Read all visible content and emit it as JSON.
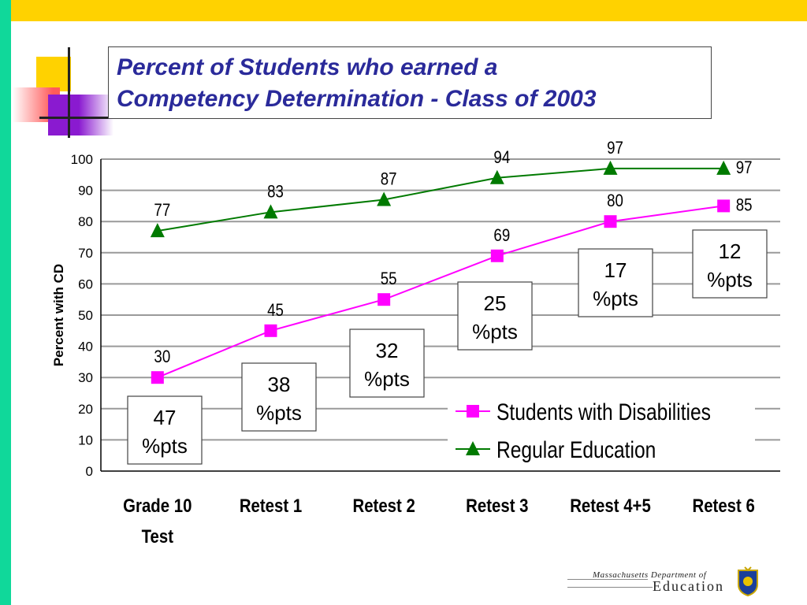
{
  "slide": {
    "title_line1": "Percent of Students who earned a",
    "title_line2": "Competency Determination - Class of 2003",
    "logo_line1": "Massachusetts Department of",
    "logo_line2": "Education"
  },
  "colors": {
    "top_bar": "#ffd200",
    "left_bar": "#10d89a",
    "title": "#2a2a9a",
    "disabilities": "#ff00ff",
    "regular": "#007a00"
  },
  "chart_data": {
    "type": "line",
    "categories": [
      [
        "Grade 10",
        "Test"
      ],
      [
        "Retest 1"
      ],
      [
        "Retest 2"
      ],
      [
        "Retest 3"
      ],
      [
        "Retest 4+5"
      ],
      [
        "Retest 6"
      ]
    ],
    "series": [
      {
        "name": "Students with Disabilities",
        "values": [
          30,
          45,
          55,
          69,
          80,
          85
        ],
        "color": "#ff00ff",
        "marker": "square"
      },
      {
        "name": "Regular Education",
        "values": [
          77,
          83,
          87,
          94,
          97,
          97
        ],
        "color": "#007a00",
        "marker": "triangle"
      }
    ],
    "ylabel": "Percent with CD",
    "ylim": [
      0,
      100
    ],
    "yticks": [
      0,
      10,
      20,
      30,
      40,
      50,
      60,
      70,
      80,
      90,
      100
    ],
    "grid": true,
    "legend": "bottom-right",
    "gap_annotations": [
      {
        "line1": "47",
        "line2": "%pts"
      },
      {
        "line1": "38",
        "line2": "%pts"
      },
      {
        "line1": "32",
        "line2": "%pts"
      },
      {
        "line1": "25",
        "line2": "%pts"
      },
      {
        "line1": "17",
        "line2": "%pts"
      },
      {
        "line1": "12",
        "line2": "%pts"
      }
    ]
  }
}
